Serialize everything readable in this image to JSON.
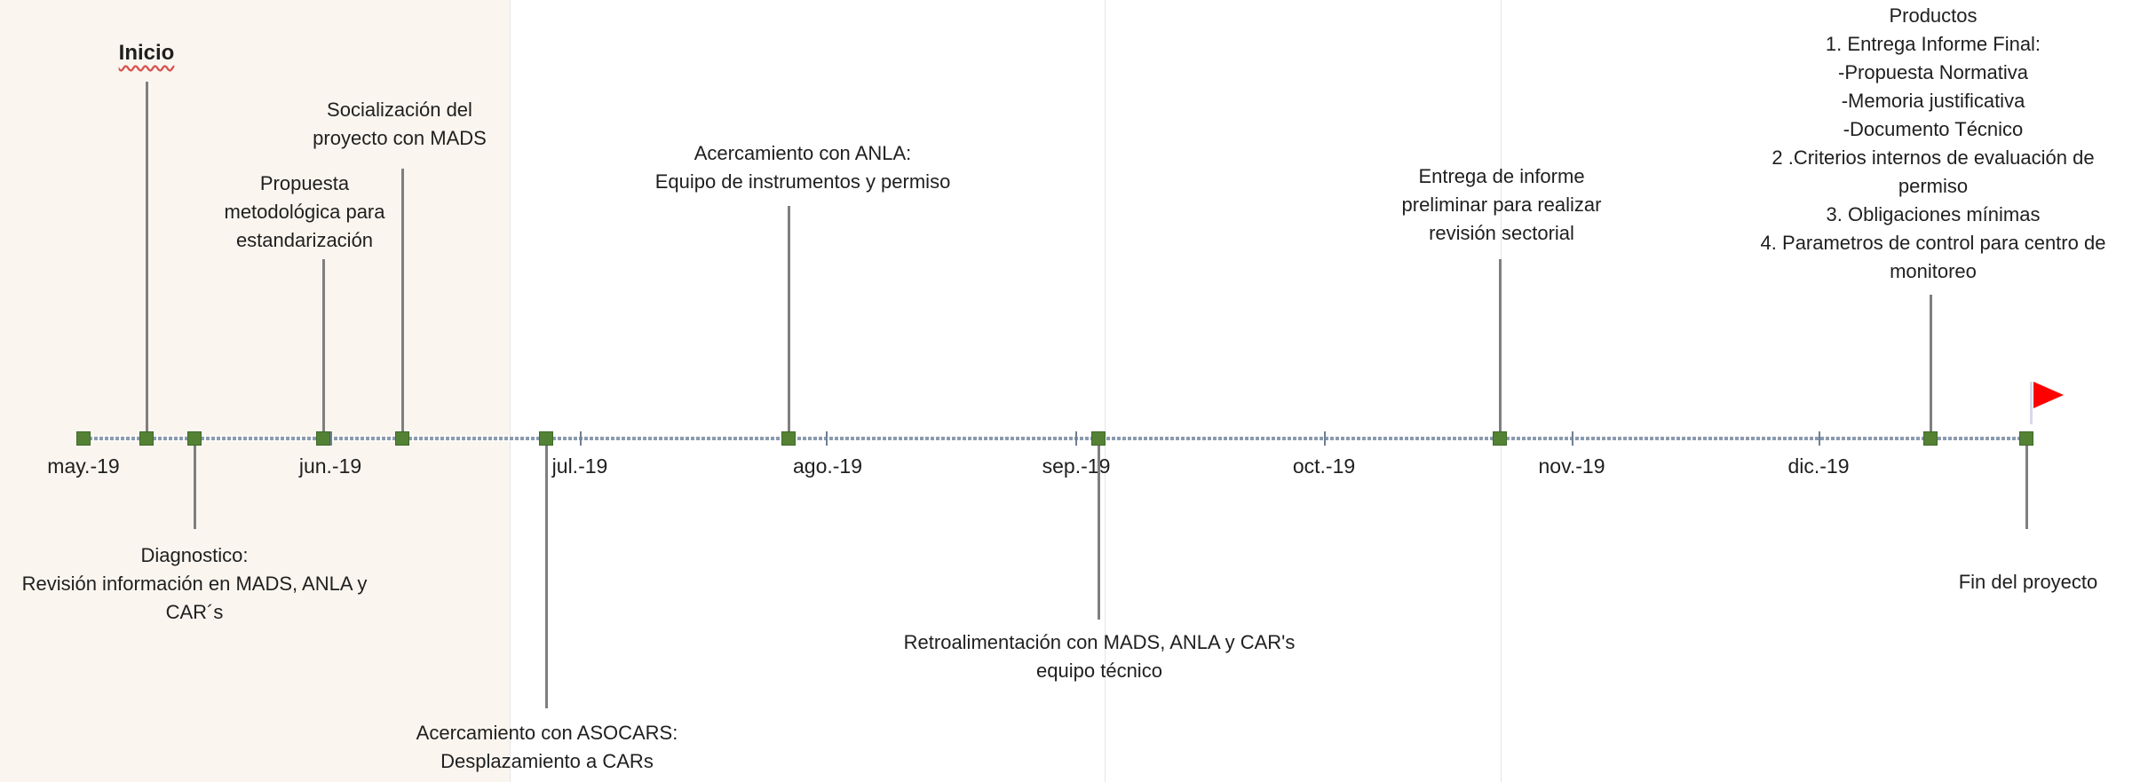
{
  "colors": {
    "marker": "#548235",
    "stem": "#7f7f7f",
    "axis": "#8a9bb0",
    "flag": "#ff0000",
    "shade": "#faf5ef"
  },
  "months": [
    "may.-19",
    "jun.-19",
    "jul.-19",
    "ago.-19",
    "sep.-19",
    "oct.-19",
    "nov.-19",
    "dic.-19"
  ],
  "milestones": [
    {
      "id": "start",
      "lines": [
        "Inicio"
      ]
    },
    {
      "id": "diagnostico",
      "lines": [
        "Diagnostico:",
        "Revisión información en MADS, ANLA y",
        "CAR´s"
      ]
    },
    {
      "id": "propuesta",
      "lines": [
        "Propuesta",
        "metodológica para",
        "estandarización"
      ]
    },
    {
      "id": "socializacion",
      "lines": [
        "Socialización del",
        "proyecto con MADS"
      ]
    },
    {
      "id": "asocars",
      "lines": [
        "Acercamiento con ASOCARS:",
        "Desplazamiento a CARs"
      ]
    },
    {
      "id": "anla",
      "lines": [
        "Acercamiento con ANLA:",
        "Equipo de instrumentos y permiso"
      ]
    },
    {
      "id": "retroalimentacion",
      "lines": [
        "Retroalimentación con MADS, ANLA y CAR's",
        "equipo técnico"
      ]
    },
    {
      "id": "entrega-preliminar",
      "lines": [
        "Entrega de informe",
        "preliminar para realizar",
        "revisión sectorial"
      ]
    },
    {
      "id": "productos",
      "lines": [
        "Productos",
        "1. Entrega Informe Final:",
        "-Propuesta Normativa",
        "-Memoria justificativa",
        "-Documento Técnico",
        "2 .Criterios internos de evaluación de",
        "permiso",
        "3. Obligaciones mínimas",
        "4. Parametros de control para  centro de",
        "monitoreo"
      ]
    },
    {
      "id": "fin",
      "lines": [
        "Fin del proyecto"
      ]
    }
  ]
}
